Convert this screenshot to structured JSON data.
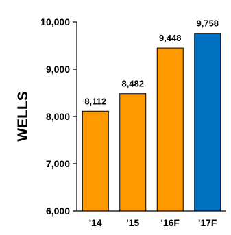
{
  "chart_data": {
    "type": "bar",
    "title": "",
    "xlabel": "",
    "ylabel": "WELLS",
    "categories": [
      "'14",
      "'15",
      "'16F",
      "'17F"
    ],
    "values": [
      8112,
      8482,
      9448,
      9758
    ],
    "data_labels": [
      "8,112",
      "8,482",
      "9,448",
      "9,758"
    ],
    "ylim": [
      6000,
      10000
    ],
    "yticks": [
      6000,
      7000,
      8000,
      9000,
      10000
    ],
    "ytick_labels": [
      "6,000",
      "7,000",
      "8,000",
      "9,000",
      "10,000"
    ],
    "bar_colors": [
      "#FF9900",
      "#FF9900",
      "#FF9900",
      "#0070C0"
    ],
    "bar_outline_color": "#000000",
    "grid": false,
    "legend": "none"
  }
}
